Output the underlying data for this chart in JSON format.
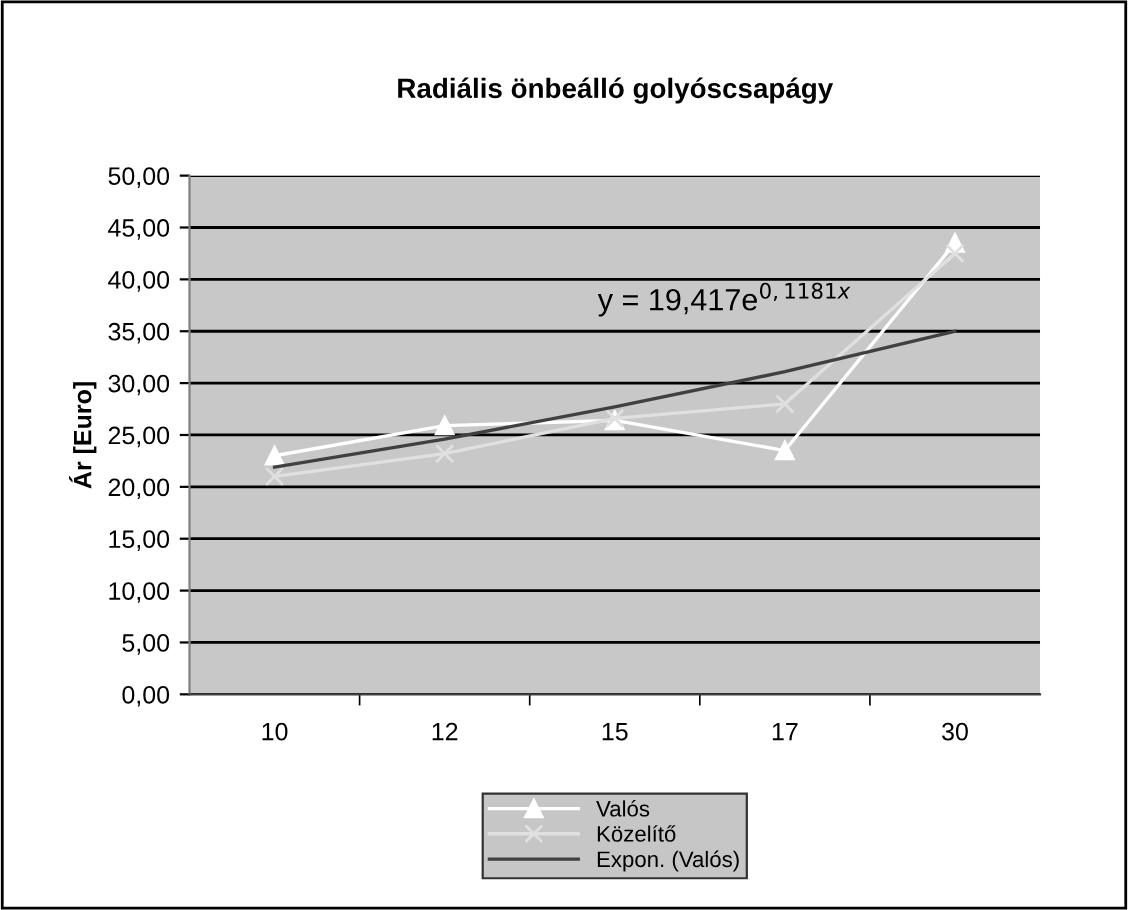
{
  "chart_data": {
    "type": "line",
    "title": "Radiális önbeálló golyóscsapágy",
    "ylabel": "Ár [Euro]",
    "categories": [
      "10",
      "12",
      "15",
      "17",
      "30"
    ],
    "series": [
      {
        "name": "Valós",
        "color": "#ffffff",
        "marker": "triangle",
        "values": [
          23.0,
          25.9,
          26.4,
          23.5,
          43.5
        ]
      },
      {
        "name": "Közelítő",
        "color": "#e0e0e0",
        "marker": "cross",
        "values": [
          21.0,
          23.2,
          26.6,
          28.0,
          42.5
        ]
      },
      {
        "name": "Expon. (Valós)",
        "color": "#404040",
        "marker": "none",
        "values": [
          21.9,
          24.6,
          27.7,
          31.1,
          35.0
        ]
      }
    ],
    "ylim": [
      0,
      50
    ],
    "yticks": [
      {
        "value": 0,
        "label": "0,00"
      },
      {
        "value": 5,
        "label": "5,00"
      },
      {
        "value": 10,
        "label": "10,00"
      },
      {
        "value": 15,
        "label": "15,00"
      },
      {
        "value": 20,
        "label": "20,00"
      },
      {
        "value": 25,
        "label": "25,00"
      },
      {
        "value": 30,
        "label": "30,00"
      },
      {
        "value": 35,
        "label": "35,00"
      },
      {
        "value": 40,
        "label": "40,00"
      },
      {
        "value": 45,
        "label": "45,00"
      },
      {
        "value": 50,
        "label": "50,00"
      }
    ],
    "grid": "y",
    "legend": "bottom",
    "annotations": [
      "y = 19,417e$^{0,1181x}$"
    ]
  }
}
